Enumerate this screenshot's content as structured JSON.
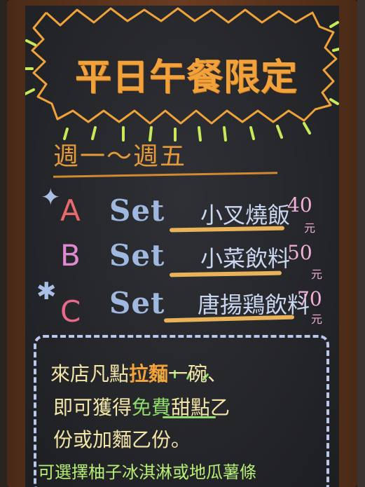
{
  "title": "平日午餐限定",
  "days": "週一～週五",
  "sets": [
    {
      "letter": "A",
      "set": "Set",
      "item": "小叉燒飯",
      "price": "40",
      "unit": "元",
      "letter_color": "#e86a6a"
    },
    {
      "letter": "B",
      "set": "Set",
      "item": "小菜飲料",
      "price": "50",
      "unit": "元",
      "letter_color": "#e08ad0"
    },
    {
      "letter": "C",
      "set": "Set",
      "item": "唐揚鶏飲料",
      "price": "70",
      "unit": "元",
      "letter_color": "#e86a8a"
    }
  ],
  "promo": {
    "line1_pre": "來店凡點",
    "line1_hl": "拉麵",
    "line1_post": "一碗、",
    "line2_pre": "即可獲得",
    "line2_free": "免費",
    "line2_post": "甜點乙",
    "line3": "份或加麵乙份。",
    "line4": "可選擇柚子冰淇淋或地瓜薯條"
  },
  "colors": {
    "title": "#f2a23a",
    "set_text": "#9fb8e0",
    "price": "#f0b0d8",
    "promo_text": "#f4e6a8",
    "promo_accent": "#b7ef76"
  }
}
